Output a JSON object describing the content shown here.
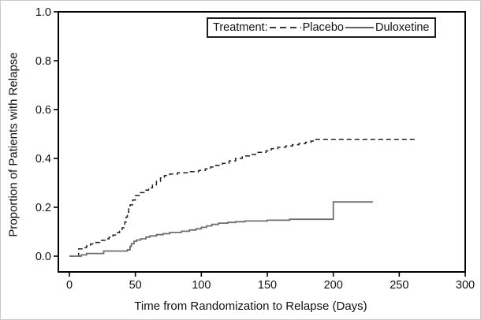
{
  "figure": {
    "background_color": "#ffffff",
    "frame_color": "#000000"
  },
  "chart_data": {
    "type": "line",
    "subtype": "kaplan-meier-step",
    "title": "",
    "xlabel": "Time from Randomization to Relapse (Days)",
    "ylabel": "Proportion of Patients with Relapse",
    "xlim": [
      0,
      300
    ],
    "ylim": [
      0.0,
      1.0
    ],
    "x_tick_values": [
      0,
      50,
      100,
      150,
      200,
      250,
      300
    ],
    "x_tick_labels": [
      "0",
      "50",
      "100",
      "150",
      "200",
      "250",
      "300"
    ],
    "y_tick_values": [
      0.0,
      0.2,
      0.4,
      0.6,
      0.8,
      1.0
    ],
    "y_tick_labels": [
      "0.0",
      "0.2",
      "0.4",
      "0.6",
      "0.8",
      "1.0"
    ],
    "grid": false,
    "legend": {
      "title": "Treatment:",
      "position": "top-right-inside"
    },
    "series": [
      {
        "name": "Placebo",
        "style": "dashed",
        "color": "#1f1f1f",
        "steps": [
          [
            0,
            0.0
          ],
          [
            7,
            0.03
          ],
          [
            10,
            0.035
          ],
          [
            13,
            0.042
          ],
          [
            16,
            0.05
          ],
          [
            20,
            0.056
          ],
          [
            23,
            0.065
          ],
          [
            27,
            0.071
          ],
          [
            30,
            0.077
          ],
          [
            33,
            0.086
          ],
          [
            36,
            0.096
          ],
          [
            38,
            0.106
          ],
          [
            40,
            0.116
          ],
          [
            42,
            0.14
          ],
          [
            43,
            0.16
          ],
          [
            44,
            0.18
          ],
          [
            45,
            0.198
          ],
          [
            46,
            0.21
          ],
          [
            48,
            0.23
          ],
          [
            50,
            0.248
          ],
          [
            53,
            0.26
          ],
          [
            57,
            0.27
          ],
          [
            60,
            0.28
          ],
          [
            63,
            0.292
          ],
          [
            66,
            0.306
          ],
          [
            69,
            0.32
          ],
          [
            72,
            0.33
          ],
          [
            76,
            0.336
          ],
          [
            82,
            0.341
          ],
          [
            90,
            0.346
          ],
          [
            98,
            0.351
          ],
          [
            103,
            0.357
          ],
          [
            107,
            0.365
          ],
          [
            111,
            0.372
          ],
          [
            116,
            0.38
          ],
          [
            121,
            0.39
          ],
          [
            126,
            0.4
          ],
          [
            131,
            0.41
          ],
          [
            138,
            0.416
          ],
          [
            143,
            0.425
          ],
          [
            149,
            0.431
          ],
          [
            153,
            0.44
          ],
          [
            158,
            0.446
          ],
          [
            164,
            0.451
          ],
          [
            169,
            0.456
          ],
          [
            174,
            0.461
          ],
          [
            179,
            0.466
          ],
          [
            183,
            0.471
          ],
          [
            186,
            0.478
          ],
          [
            262,
            0.478
          ]
        ]
      },
      {
        "name": "Duloxetine",
        "style": "solid",
        "color": "#6e6e6e",
        "steps": [
          [
            0,
            0.0
          ],
          [
            9,
            0.005
          ],
          [
            13,
            0.011
          ],
          [
            26,
            0.021
          ],
          [
            44,
            0.026
          ],
          [
            46,
            0.04
          ],
          [
            47,
            0.051
          ],
          [
            49,
            0.061
          ],
          [
            51,
            0.066
          ],
          [
            54,
            0.071
          ],
          [
            58,
            0.078
          ],
          [
            61,
            0.083
          ],
          [
            66,
            0.088
          ],
          [
            71,
            0.092
          ],
          [
            76,
            0.097
          ],
          [
            85,
            0.102
          ],
          [
            91,
            0.107
          ],
          [
            96,
            0.112
          ],
          [
            100,
            0.118
          ],
          [
            104,
            0.124
          ],
          [
            108,
            0.13
          ],
          [
            113,
            0.135
          ],
          [
            120,
            0.138
          ],
          [
            126,
            0.141
          ],
          [
            133,
            0.144
          ],
          [
            150,
            0.147
          ],
          [
            167,
            0.151
          ],
          [
            200,
            0.222
          ],
          [
            230,
            0.222
          ]
        ]
      }
    ]
  }
}
